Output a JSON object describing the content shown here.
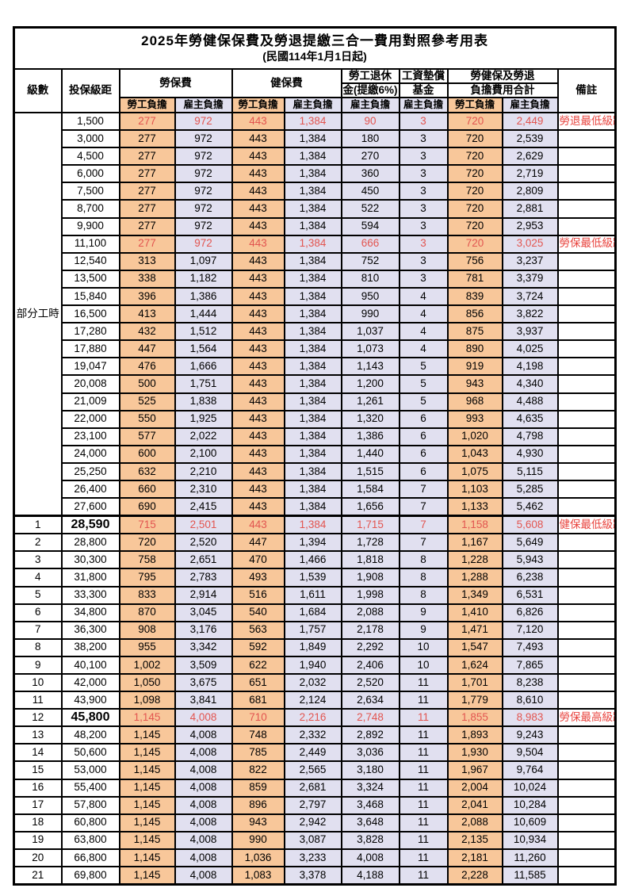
{
  "title": "2025年勞健保保費及勞退提繳三合一費用對照參考用表",
  "subtitle": "(民國114年1月1日起)",
  "colors": {
    "employee_column_bg": "#F8C79A",
    "employer_column_bg": "#E1E0F0",
    "highlight_text": "#E25550",
    "remark_text": "#E8433D",
    "border": "#000000"
  },
  "header": {
    "level": "級數",
    "bracket": "投保級距",
    "labor_fee": "勞保費",
    "health_fee": "健保費",
    "pension_line1": "勞工退休",
    "pension_line2": "金(提繳6%)",
    "wage_fund_line1": "工資墊償",
    "wage_fund_line2": "基金",
    "total_line1": "勞健保及勞退",
    "total_line2": "負擔費用合計",
    "remark": "備註",
    "employee": "勞工負擔",
    "employer": "雇主負擔"
  },
  "part_time_label": "部分工時",
  "rows": [
    {
      "lv": "",
      "br": "1,500",
      "le": "277",
      "lr": "972",
      "he": "443",
      "hr": "1,384",
      "pe": "90",
      "wf": "3",
      "te": "720",
      "tr": "2,449",
      "rm": "勞退最低級距",
      "red": true,
      "big": false
    },
    {
      "lv": "",
      "br": "3,000",
      "le": "277",
      "lr": "972",
      "he": "443",
      "hr": "1,384",
      "pe": "180",
      "wf": "3",
      "te": "720",
      "tr": "2,539",
      "rm": "",
      "red": false,
      "big": false
    },
    {
      "lv": "",
      "br": "4,500",
      "le": "277",
      "lr": "972",
      "he": "443",
      "hr": "1,384",
      "pe": "270",
      "wf": "3",
      "te": "720",
      "tr": "2,629",
      "rm": "",
      "red": false,
      "big": false
    },
    {
      "lv": "",
      "br": "6,000",
      "le": "277",
      "lr": "972",
      "he": "443",
      "hr": "1,384",
      "pe": "360",
      "wf": "3",
      "te": "720",
      "tr": "2,719",
      "rm": "",
      "red": false,
      "big": false
    },
    {
      "lv": "",
      "br": "7,500",
      "le": "277",
      "lr": "972",
      "he": "443",
      "hr": "1,384",
      "pe": "450",
      "wf": "3",
      "te": "720",
      "tr": "2,809",
      "rm": "",
      "red": false,
      "big": false
    },
    {
      "lv": "",
      "br": "8,700",
      "le": "277",
      "lr": "972",
      "he": "443",
      "hr": "1,384",
      "pe": "522",
      "wf": "3",
      "te": "720",
      "tr": "2,881",
      "rm": "",
      "red": false,
      "big": false
    },
    {
      "lv": "",
      "br": "9,900",
      "le": "277",
      "lr": "972",
      "he": "443",
      "hr": "1,384",
      "pe": "594",
      "wf": "3",
      "te": "720",
      "tr": "2,953",
      "rm": "",
      "red": false,
      "big": false
    },
    {
      "lv": "",
      "br": "11,100",
      "le": "277",
      "lr": "972",
      "he": "443",
      "hr": "1,384",
      "pe": "666",
      "wf": "3",
      "te": "720",
      "tr": "3,025",
      "rm": "勞保最低級距",
      "red": true,
      "big": false
    },
    {
      "lv": "",
      "br": "12,540",
      "le": "313",
      "lr": "1,097",
      "he": "443",
      "hr": "1,384",
      "pe": "752",
      "wf": "3",
      "te": "756",
      "tr": "3,237",
      "rm": "",
      "red": false,
      "big": false
    },
    {
      "lv": "",
      "br": "13,500",
      "le": "338",
      "lr": "1,182",
      "he": "443",
      "hr": "1,384",
      "pe": "810",
      "wf": "3",
      "te": "781",
      "tr": "3,379",
      "rm": "",
      "red": false,
      "big": false
    },
    {
      "lv": "",
      "br": "15,840",
      "le": "396",
      "lr": "1,386",
      "he": "443",
      "hr": "1,384",
      "pe": "950",
      "wf": "4",
      "te": "839",
      "tr": "3,724",
      "rm": "",
      "red": false,
      "big": false
    },
    {
      "lv": "",
      "br": "16,500",
      "le": "413",
      "lr": "1,444",
      "he": "443",
      "hr": "1,384",
      "pe": "990",
      "wf": "4",
      "te": "856",
      "tr": "3,822",
      "rm": "",
      "red": false,
      "big": false
    },
    {
      "lv": "",
      "br": "17,280",
      "le": "432",
      "lr": "1,512",
      "he": "443",
      "hr": "1,384",
      "pe": "1,037",
      "wf": "4",
      "te": "875",
      "tr": "3,937",
      "rm": "",
      "red": false,
      "big": false
    },
    {
      "lv": "",
      "br": "17,880",
      "le": "447",
      "lr": "1,564",
      "he": "443",
      "hr": "1,384",
      "pe": "1,073",
      "wf": "4",
      "te": "890",
      "tr": "4,025",
      "rm": "",
      "red": false,
      "big": false
    },
    {
      "lv": "",
      "br": "19,047",
      "le": "476",
      "lr": "1,666",
      "he": "443",
      "hr": "1,384",
      "pe": "1,143",
      "wf": "5",
      "te": "919",
      "tr": "4,198",
      "rm": "",
      "red": false,
      "big": false
    },
    {
      "lv": "",
      "br": "20,008",
      "le": "500",
      "lr": "1,751",
      "he": "443",
      "hr": "1,384",
      "pe": "1,200",
      "wf": "5",
      "te": "943",
      "tr": "4,340",
      "rm": "",
      "red": false,
      "big": false
    },
    {
      "lv": "",
      "br": "21,009",
      "le": "525",
      "lr": "1,838",
      "he": "443",
      "hr": "1,384",
      "pe": "1,261",
      "wf": "5",
      "te": "968",
      "tr": "4,488",
      "rm": "",
      "red": false,
      "big": false
    },
    {
      "lv": "",
      "br": "22,000",
      "le": "550",
      "lr": "1,925",
      "he": "443",
      "hr": "1,384",
      "pe": "1,320",
      "wf": "6",
      "te": "993",
      "tr": "4,635",
      "rm": "",
      "red": false,
      "big": false
    },
    {
      "lv": "",
      "br": "23,100",
      "le": "577",
      "lr": "2,022",
      "he": "443",
      "hr": "1,384",
      "pe": "1,386",
      "wf": "6",
      "te": "1,020",
      "tr": "4,798",
      "rm": "",
      "red": false,
      "big": false
    },
    {
      "lv": "",
      "br": "24,000",
      "le": "600",
      "lr": "2,100",
      "he": "443",
      "hr": "1,384",
      "pe": "1,440",
      "wf": "6",
      "te": "1,043",
      "tr": "4,930",
      "rm": "",
      "red": false,
      "big": false
    },
    {
      "lv": "",
      "br": "25,250",
      "le": "632",
      "lr": "2,210",
      "he": "443",
      "hr": "1,384",
      "pe": "1,515",
      "wf": "6",
      "te": "1,075",
      "tr": "5,115",
      "rm": "",
      "red": false,
      "big": false
    },
    {
      "lv": "",
      "br": "26,400",
      "le": "660",
      "lr": "2,310",
      "he": "443",
      "hr": "1,384",
      "pe": "1,584",
      "wf": "7",
      "te": "1,103",
      "tr": "5,285",
      "rm": "",
      "red": false,
      "big": false
    },
    {
      "lv": "",
      "br": "27,600",
      "le": "690",
      "lr": "2,415",
      "he": "443",
      "hr": "1,384",
      "pe": "1,656",
      "wf": "7",
      "te": "1,133",
      "tr": "5,462",
      "rm": "",
      "red": false,
      "big": false
    },
    {
      "lv": "1",
      "br": "28,590",
      "le": "715",
      "lr": "2,501",
      "he": "443",
      "hr": "1,384",
      "pe": "1,715",
      "wf": "7",
      "te": "1,158",
      "tr": "5,608",
      "rm": "健保最低級距",
      "red": true,
      "big": true
    },
    {
      "lv": "2",
      "br": "28,800",
      "le": "720",
      "lr": "2,520",
      "he": "447",
      "hr": "1,394",
      "pe": "1,728",
      "wf": "7",
      "te": "1,167",
      "tr": "5,649",
      "rm": "",
      "red": false,
      "big": false
    },
    {
      "lv": "3",
      "br": "30,300",
      "le": "758",
      "lr": "2,651",
      "he": "470",
      "hr": "1,466",
      "pe": "1,818",
      "wf": "8",
      "te": "1,228",
      "tr": "5,943",
      "rm": "",
      "red": false,
      "big": false
    },
    {
      "lv": "4",
      "br": "31,800",
      "le": "795",
      "lr": "2,783",
      "he": "493",
      "hr": "1,539",
      "pe": "1,908",
      "wf": "8",
      "te": "1,288",
      "tr": "6,238",
      "rm": "",
      "red": false,
      "big": false
    },
    {
      "lv": "5",
      "br": "33,300",
      "le": "833",
      "lr": "2,914",
      "he": "516",
      "hr": "1,611",
      "pe": "1,998",
      "wf": "8",
      "te": "1,349",
      "tr": "6,531",
      "rm": "",
      "red": false,
      "big": false
    },
    {
      "lv": "6",
      "br": "34,800",
      "le": "870",
      "lr": "3,045",
      "he": "540",
      "hr": "1,684",
      "pe": "2,088",
      "wf": "9",
      "te": "1,410",
      "tr": "6,826",
      "rm": "",
      "red": false,
      "big": false
    },
    {
      "lv": "7",
      "br": "36,300",
      "le": "908",
      "lr": "3,176",
      "he": "563",
      "hr": "1,757",
      "pe": "2,178",
      "wf": "9",
      "te": "1,471",
      "tr": "7,120",
      "rm": "",
      "red": false,
      "big": false
    },
    {
      "lv": "8",
      "br": "38,200",
      "le": "955",
      "lr": "3,342",
      "he": "592",
      "hr": "1,849",
      "pe": "2,292",
      "wf": "10",
      "te": "1,547",
      "tr": "7,493",
      "rm": "",
      "red": false,
      "big": false
    },
    {
      "lv": "9",
      "br": "40,100",
      "le": "1,002",
      "lr": "3,509",
      "he": "622",
      "hr": "1,940",
      "pe": "2,406",
      "wf": "10",
      "te": "1,624",
      "tr": "7,865",
      "rm": "",
      "red": false,
      "big": false
    },
    {
      "lv": "10",
      "br": "42,000",
      "le": "1,050",
      "lr": "3,675",
      "he": "651",
      "hr": "2,032",
      "pe": "2,520",
      "wf": "11",
      "te": "1,701",
      "tr": "8,238",
      "rm": "",
      "red": false,
      "big": false
    },
    {
      "lv": "11",
      "br": "43,900",
      "le": "1,098",
      "lr": "3,841",
      "he": "681",
      "hr": "2,124",
      "pe": "2,634",
      "wf": "11",
      "te": "1,779",
      "tr": "8,610",
      "rm": "",
      "red": false,
      "big": false
    },
    {
      "lv": "12",
      "br": "45,800",
      "le": "1,145",
      "lr": "4,008",
      "he": "710",
      "hr": "2,216",
      "pe": "2,748",
      "wf": "11",
      "te": "1,855",
      "tr": "8,983",
      "rm": "勞保最高級距",
      "red": true,
      "big": true
    },
    {
      "lv": "13",
      "br": "48,200",
      "le": "1,145",
      "lr": "4,008",
      "he": "748",
      "hr": "2,332",
      "pe": "2,892",
      "wf": "11",
      "te": "1,893",
      "tr": "9,243",
      "rm": "",
      "red": false,
      "big": false
    },
    {
      "lv": "14",
      "br": "50,600",
      "le": "1,145",
      "lr": "4,008",
      "he": "785",
      "hr": "2,449",
      "pe": "3,036",
      "wf": "11",
      "te": "1,930",
      "tr": "9,504",
      "rm": "",
      "red": false,
      "big": false
    },
    {
      "lv": "15",
      "br": "53,000",
      "le": "1,145",
      "lr": "4,008",
      "he": "822",
      "hr": "2,565",
      "pe": "3,180",
      "wf": "11",
      "te": "1,967",
      "tr": "9,764",
      "rm": "",
      "red": false,
      "big": false
    },
    {
      "lv": "16",
      "br": "55,400",
      "le": "1,145",
      "lr": "4,008",
      "he": "859",
      "hr": "2,681",
      "pe": "3,324",
      "wf": "11",
      "te": "2,004",
      "tr": "10,024",
      "rm": "",
      "red": false,
      "big": false
    },
    {
      "lv": "17",
      "br": "57,800",
      "le": "1,145",
      "lr": "4,008",
      "he": "896",
      "hr": "2,797",
      "pe": "3,468",
      "wf": "11",
      "te": "2,041",
      "tr": "10,284",
      "rm": "",
      "red": false,
      "big": false
    },
    {
      "lv": "18",
      "br": "60,800",
      "le": "1,145",
      "lr": "4,008",
      "he": "943",
      "hr": "2,942",
      "pe": "3,648",
      "wf": "11",
      "te": "2,088",
      "tr": "10,609",
      "rm": "",
      "red": false,
      "big": false
    },
    {
      "lv": "19",
      "br": "63,800",
      "le": "1,145",
      "lr": "4,008",
      "he": "990",
      "hr": "3,087",
      "pe": "3,828",
      "wf": "11",
      "te": "2,135",
      "tr": "10,934",
      "rm": "",
      "red": false,
      "big": false
    },
    {
      "lv": "20",
      "br": "66,800",
      "le": "1,145",
      "lr": "4,008",
      "he": "1,036",
      "hr": "3,233",
      "pe": "4,008",
      "wf": "11",
      "te": "2,181",
      "tr": "11,260",
      "rm": "",
      "red": false,
      "big": false
    },
    {
      "lv": "21",
      "br": "69,800",
      "le": "1,145",
      "lr": "4,008",
      "he": "1,083",
      "hr": "3,378",
      "pe": "4,188",
      "wf": "11",
      "te": "2,228",
      "tr": "11,585",
      "rm": "",
      "red": false,
      "big": false
    }
  ]
}
